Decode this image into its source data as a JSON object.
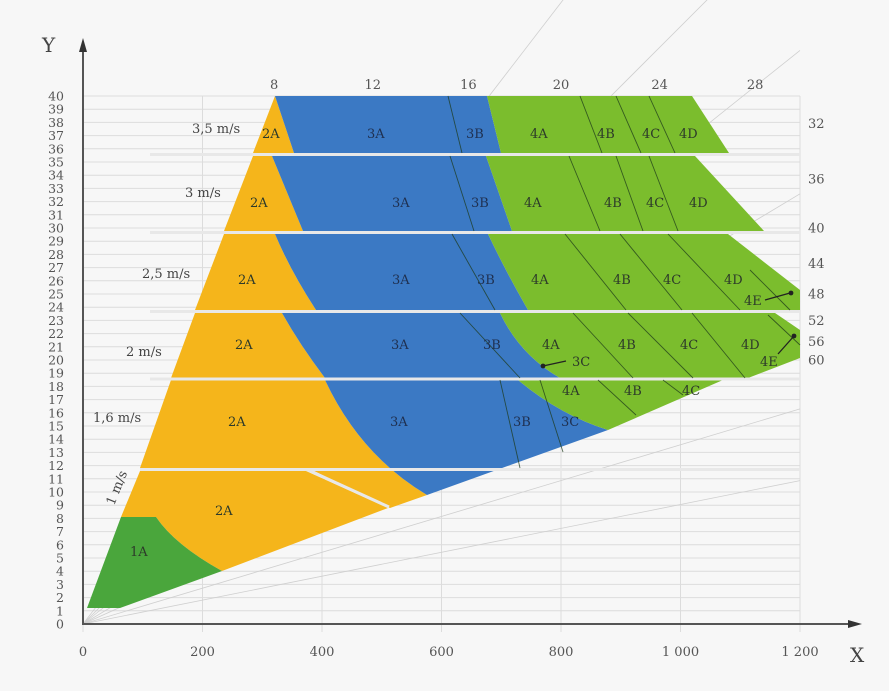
{
  "chart_data": {
    "type": "area",
    "title": "",
    "xlabel": "X",
    "ylabel": "Y",
    "xlim": [
      0,
      1200
    ],
    "ylim": [
      0,
      40
    ],
    "grid": true,
    "x_ticks": [
      "0",
      "200",
      "400",
      "600",
      "800",
      "1 000",
      "1 200"
    ],
    "x_tick_values": [
      0,
      200,
      400,
      600,
      800,
      1000,
      1200
    ],
    "y_ticks": [
      "0",
      "1",
      "2",
      "3",
      "4",
      "5",
      "6",
      "7",
      "8",
      "9",
      "10",
      "11",
      "12",
      "13",
      "14",
      "15",
      "16",
      "17",
      "18",
      "19",
      "20",
      "21",
      "22",
      "23",
      "24",
      "25",
      "26",
      "27",
      "28",
      "29",
      "30",
      "31",
      "32",
      "33",
      "34",
      "35",
      "36",
      "37",
      "38",
      "39",
      "40"
    ],
    "top_scale": {
      "labels": [
        "8",
        "12",
        "16",
        "20",
        "24",
        "28"
      ],
      "x_values": [
        320,
        485,
        645,
        800,
        965,
        1125
      ]
    },
    "right_scale": {
      "labels": [
        "32",
        "36",
        "40",
        "44",
        "48",
        "52",
        "56",
        "60"
      ],
      "y_values": [
        37.9,
        33.7,
        30,
        27.3,
        25,
        23,
        21.4,
        20
      ]
    },
    "colors": {
      "1A": "#4aa63c",
      "2A": "#f5b51b",
      "3": "#3b79c4",
      "4": "#7bbd2d",
      "background": "#f7f7f7",
      "grid": "#dcdcdc",
      "axis": "#555555"
    },
    "speed_bands": [
      {
        "label": "1 m/s",
        "y_range": [
          1,
          11.5
        ]
      },
      {
        "label": "1,6 m/s",
        "y_range": [
          11.5,
          18.5
        ]
      },
      {
        "label": "2 m/s",
        "y_range": [
          18.5,
          23.5
        ]
      },
      {
        "label": "2,5 m/s",
        "y_range": [
          23.5,
          29.5
        ]
      },
      {
        "label": "3 m/s",
        "y_range": [
          29.5,
          35.5
        ]
      },
      {
        "label": "3,5 m/s",
        "y_range": [
          35.5,
          40
        ]
      }
    ],
    "zones": [
      {
        "band": "1 m/s",
        "labels": [
          "1A",
          "2A"
        ]
      },
      {
        "band": "1,6 m/s",
        "labels": [
          "2A",
          "3A",
          "3B",
          "3C",
          "4A",
          "4B",
          "4C"
        ]
      },
      {
        "band": "2 m/s",
        "labels": [
          "2A",
          "3A",
          "3B",
          "3C",
          "4A",
          "4B",
          "4C",
          "4D",
          "4E"
        ]
      },
      {
        "band": "2,5 m/s",
        "labels": [
          "2A",
          "3A",
          "3B",
          "4A",
          "4B",
          "4C",
          "4D",
          "4E"
        ]
      },
      {
        "band": "3 m/s",
        "labels": [
          "2A",
          "3A",
          "3B",
          "4A",
          "4B",
          "4C",
          "4D"
        ]
      },
      {
        "band": "3,5 m/s",
        "labels": [
          "2A",
          "3A",
          "3B",
          "4A",
          "4B",
          "4C",
          "4D"
        ]
      }
    ]
  },
  "labels": {
    "x_axis": "X",
    "y_axis": "Y",
    "speeds": [
      "3,5 m/s",
      "3 m/s",
      "2,5 m/s",
      "2 m/s",
      "1,6 m/s",
      "1 m/s"
    ],
    "z": {
      "b35": [
        "2A",
        "3A",
        "3B",
        "4A",
        "4B",
        "4C",
        "4D"
      ],
      "b30": [
        "2A",
        "3A",
        "3B",
        "4A",
        "4B",
        "4C",
        "4D"
      ],
      "b25": [
        "2A",
        "3A",
        "3B",
        "4A",
        "4B",
        "4C",
        "4D",
        "4E"
      ],
      "b20": [
        "2A",
        "3A",
        "3B",
        "4A",
        "3C",
        "4B",
        "4C",
        "4D",
        "4E"
      ],
      "b16": [
        "2A",
        "3A",
        "3B",
        "3C",
        "4A",
        "4B",
        "4C"
      ],
      "b10": [
        "2A",
        "1A"
      ]
    }
  }
}
